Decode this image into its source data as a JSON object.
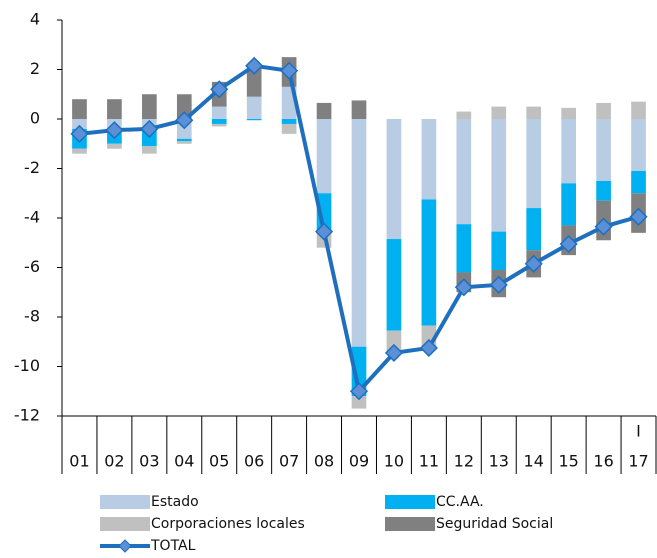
{
  "chart_data": {
    "type": "stacked_bar_line",
    "categories": [
      "01",
      "02",
      "03",
      "04",
      "05",
      "06",
      "07",
      "08",
      "09",
      "10",
      "11",
      "12",
      "13",
      "14",
      "15",
      "16",
      "17"
    ],
    "annotations": [
      "I"
    ],
    "series": [
      {
        "name": "Estado",
        "color": "#b8cce4",
        "kind": "bar",
        "values": [
          -0.4,
          -0.4,
          -0.4,
          -0.8,
          0.5,
          0.9,
          1.3,
          -3.0,
          -9.2,
          -4.85,
          -3.25,
          -4.25,
          -4.55,
          -3.6,
          -2.6,
          -2.5,
          -2.1
        ]
      },
      {
        "name": "CC.AA.",
        "color": "#00b0f0",
        "kind": "bar",
        "values": [
          -0.8,
          -0.6,
          -0.7,
          -0.1,
          -0.2,
          -0.05,
          -0.2,
          -1.5,
          -2.0,
          -3.7,
          -5.1,
          -1.95,
          -1.55,
          -1.7,
          -1.7,
          -0.8,
          -0.9
        ]
      },
      {
        "name": "Corporaciones locales",
        "color": "#c0c0c0",
        "kind": "bar",
        "values": [
          -0.2,
          -0.2,
          -0.3,
          -0.1,
          -0.1,
          0,
          -0.4,
          -0.7,
          -0.5,
          -0.9,
          -0.9,
          0.3,
          0.5,
          0.5,
          0.45,
          0.65,
          0.7
        ]
      },
      {
        "name": "Seguridad Social",
        "color": "#808080",
        "kind": "bar",
        "values": [
          0.8,
          0.8,
          1.0,
          1.0,
          1.0,
          1.3,
          1.2,
          0.65,
          0.75,
          0,
          0,
          -0.8,
          -1.1,
          -1.1,
          -1.2,
          -1.6,
          -1.6
        ]
      },
      {
        "name": "TOTAL",
        "color": "#1f6fbf",
        "marker_color": "#5b8fd6",
        "kind": "line",
        "values": [
          -0.6,
          -0.45,
          -0.4,
          -0.05,
          1.2,
          2.15,
          1.95,
          -4.55,
          -11.0,
          -9.45,
          -9.25,
          -6.8,
          -6.7,
          -5.85,
          -5.05,
          -4.35,
          -3.95
        ]
      }
    ],
    "ylim": [
      -12,
      4
    ],
    "yticks": [
      -12,
      -10,
      -8,
      -6,
      -4,
      -2,
      0,
      2,
      4
    ],
    "grid": false,
    "legend": "bottom"
  }
}
